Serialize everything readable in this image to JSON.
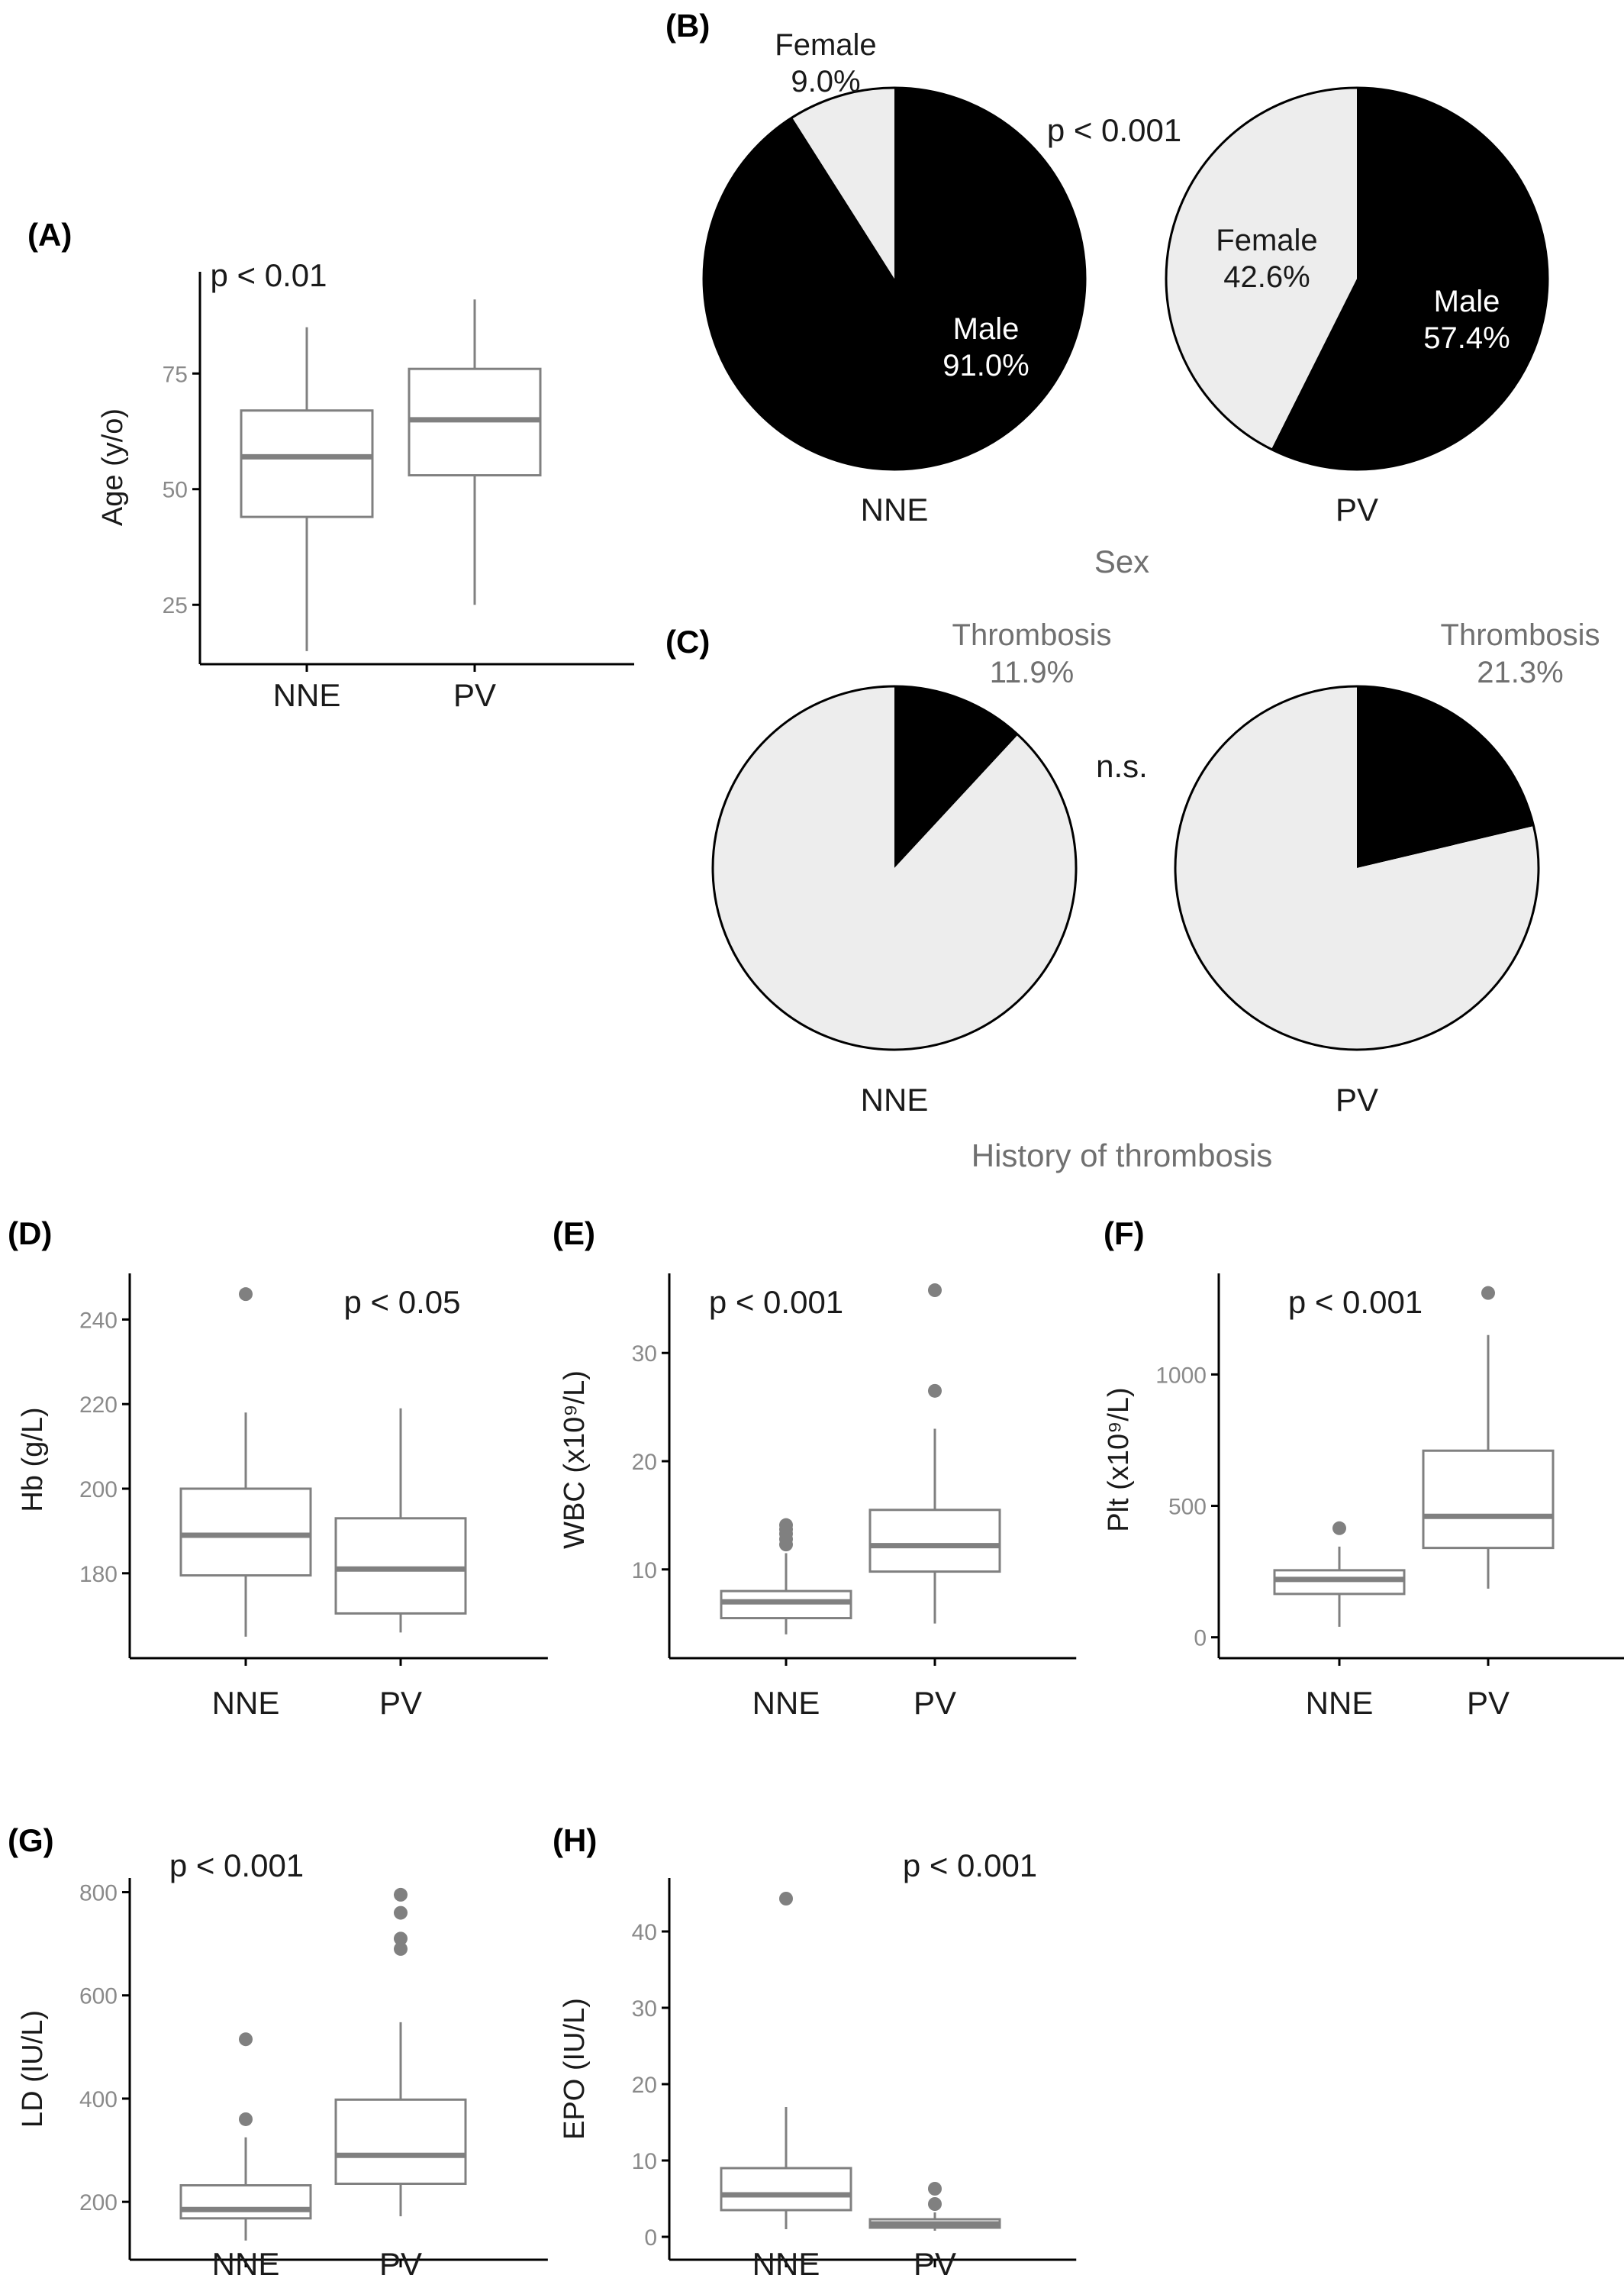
{
  "colors": {
    "box": "#808080",
    "axis": "#000000",
    "tick_text": "#8a8a8a",
    "pie_dark": "#000000",
    "pie_light": "#ededed"
  },
  "chart_data": [
    {
      "panel": "(A)",
      "type": "box",
      "pvalue": "p < 0.01",
      "ylabel": "Age (y/o)",
      "categories": [
        "NNE",
        "PV"
      ],
      "yticks": [
        25,
        50,
        75
      ],
      "ylim": [
        12,
        96
      ],
      "boxes": [
        {
          "q1": 44,
          "median": 57,
          "q3": 67,
          "whisker_low": 15,
          "whisker_high": 85,
          "outliers": []
        },
        {
          "q1": 53,
          "median": 65,
          "q3": 76,
          "whisker_low": 25,
          "whisker_high": 91,
          "outliers": []
        }
      ]
    },
    {
      "panel": "(B)",
      "type": "pie",
      "pvalue": "p < 0.001",
      "xlabel": "Sex",
      "pies": [
        {
          "name": "NNE",
          "slices": [
            {
              "label": "Male",
              "pct": "91.0%",
              "value": 91.0,
              "color": "#000000"
            },
            {
              "label": "Female",
              "pct": "9.0%",
              "value": 9.0,
              "color": "#ededed"
            }
          ]
        },
        {
          "name": "PV",
          "slices": [
            {
              "label": "Male",
              "pct": "57.4%",
              "value": 57.4,
              "color": "#000000"
            },
            {
              "label": "Female",
              "pct": "42.6%",
              "value": 42.6,
              "color": "#ededed"
            }
          ]
        }
      ]
    },
    {
      "panel": "(C)",
      "type": "pie",
      "pvalue": "n.s.",
      "xlabel": "History of thrombosis",
      "pies": [
        {
          "name": "NNE",
          "slices": [
            {
              "label": "Thrombosis",
              "pct": "11.9%",
              "value": 11.9,
              "color": "#000000"
            },
            {
              "label": "",
              "pct": "",
              "value": 88.1,
              "color": "#ededed"
            }
          ]
        },
        {
          "name": "PV",
          "slices": [
            {
              "label": "Thrombosis",
              "pct": "21.3%",
              "value": 21.3,
              "color": "#000000"
            },
            {
              "label": "",
              "pct": "",
              "value": 78.7,
              "color": "#ededed"
            }
          ]
        }
      ]
    },
    {
      "panel": "(D)",
      "type": "box",
      "pvalue": "p < 0.05",
      "ylabel": "Hb (g/L)",
      "categories": [
        "NNE",
        "PV"
      ],
      "yticks": [
        180,
        200,
        220,
        240
      ],
      "ylim": [
        163,
        250
      ],
      "boxes": [
        {
          "q1": 179.5,
          "median": 189,
          "q3": 200,
          "whisker_low": 165,
          "whisker_high": 218,
          "outliers": [
            246
          ]
        },
        {
          "q1": 170.5,
          "median": 181,
          "q3": 193,
          "whisker_low": 166,
          "whisker_high": 219,
          "outliers": []
        }
      ]
    },
    {
      "panel": "(E)",
      "type": "box",
      "pvalue": "p < 0.001",
      "ylabel": "WBC (x10⁹/L)",
      "categories": [
        "NNE",
        "PV"
      ],
      "yticks": [
        10,
        20,
        30
      ],
      "ylim": [
        3,
        37
      ],
      "boxes": [
        {
          "q1": 5.5,
          "median": 7,
          "q3": 8,
          "whisker_low": 4,
          "whisker_high": 11.5,
          "outliers": [
            12.3,
            12.8,
            13.3,
            13.7,
            14.1
          ]
        },
        {
          "q1": 9.8,
          "median": 12.2,
          "q3": 15.5,
          "whisker_low": 5,
          "whisker_high": 23,
          "outliers": [
            26.5,
            35.8
          ]
        }
      ]
    },
    {
      "panel": "(F)",
      "type": "box",
      "pvalue": "p < 0.001",
      "ylabel": "Plt (x10⁹/L)",
      "categories": [
        "NNE",
        "PV"
      ],
      "yticks": [
        0,
        500,
        1000
      ],
      "ylim": [
        -30,
        1370
      ],
      "boxes": [
        {
          "q1": 165,
          "median": 220,
          "q3": 255,
          "whisker_low": 40,
          "whisker_high": 345,
          "outliers": [
            415
          ]
        },
        {
          "q1": 340,
          "median": 460,
          "q3": 710,
          "whisker_low": 185,
          "whisker_high": 1150,
          "outliers": [
            1310
          ]
        }
      ]
    },
    {
      "panel": "(G)",
      "type": "box",
      "pvalue": "p < 0.001",
      "ylabel": "LD (IU/L)",
      "categories": [
        "NNE",
        "PV"
      ],
      "yticks": [
        200,
        400,
        600,
        800
      ],
      "ylim": [
        110,
        820
      ],
      "boxes": [
        {
          "q1": 168,
          "median": 185,
          "q3": 232,
          "whisker_low": 125,
          "whisker_high": 325,
          "outliers": [
            360,
            515
          ]
        },
        {
          "q1": 235,
          "median": 290,
          "q3": 398,
          "whisker_low": 172,
          "whisker_high": 548,
          "outliers": [
            690,
            710,
            760,
            795
          ]
        }
      ]
    },
    {
      "panel": "(H)",
      "type": "box",
      "pvalue": "p < 0.001",
      "ylabel": "EPO (IU/L)",
      "categories": [
        "NNE",
        "PV"
      ],
      "yticks": [
        0,
        10,
        20,
        30,
        40
      ],
      "ylim": [
        -1.5,
        46.5
      ],
      "boxes": [
        {
          "q1": 3.5,
          "median": 5.5,
          "q3": 9,
          "whisker_low": 1,
          "whisker_high": 17,
          "outliers": [
            44.3
          ]
        },
        {
          "q1": 1.2,
          "median": 1.7,
          "q3": 2.3,
          "whisker_low": 0.8,
          "whisker_high": 3.2,
          "outliers": [
            4.3,
            6.3
          ]
        }
      ]
    }
  ]
}
